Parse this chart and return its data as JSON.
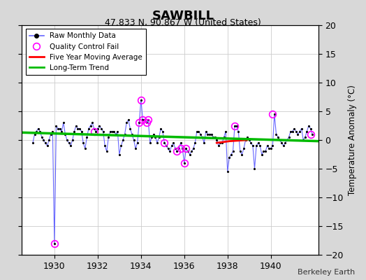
{
  "title": "SAWBILL",
  "subtitle": "47.833 N, 90.867 W (United States)",
  "credit": "Berkeley Earth",
  "ylabel": "Temperature Anomaly (°C)",
  "xlim": [
    1928.5,
    1942.2
  ],
  "ylim": [
    -20,
    20
  ],
  "yticks": [
    -20,
    -15,
    -10,
    -5,
    0,
    5,
    10,
    15,
    20
  ],
  "xticks": [
    1930,
    1932,
    1934,
    1936,
    1938,
    1940
  ],
  "bg_color": "#d8d8d8",
  "plot_bg": "#ffffff",
  "raw_x": [
    1929.0,
    1929.083,
    1929.167,
    1929.25,
    1929.333,
    1929.417,
    1929.5,
    1929.583,
    1929.667,
    1929.75,
    1929.833,
    1929.917,
    1930.0,
    1930.083,
    1930.167,
    1930.25,
    1930.333,
    1930.417,
    1930.5,
    1930.583,
    1930.667,
    1930.75,
    1930.833,
    1930.917,
    1931.0,
    1931.083,
    1931.167,
    1931.25,
    1931.333,
    1931.417,
    1931.5,
    1931.583,
    1931.667,
    1931.75,
    1931.833,
    1931.917,
    1932.0,
    1932.083,
    1932.167,
    1932.25,
    1932.333,
    1932.417,
    1932.5,
    1932.583,
    1932.667,
    1932.75,
    1932.833,
    1932.917,
    1933.0,
    1933.083,
    1933.167,
    1933.25,
    1933.333,
    1933.417,
    1933.5,
    1933.583,
    1933.667,
    1933.75,
    1933.833,
    1933.917,
    1934.0,
    1934.083,
    1934.167,
    1934.25,
    1934.333,
    1934.417,
    1934.5,
    1934.583,
    1934.667,
    1934.75,
    1934.833,
    1934.917,
    1935.0,
    1935.083,
    1935.167,
    1935.25,
    1935.333,
    1935.417,
    1935.5,
    1935.583,
    1935.667,
    1935.75,
    1935.833,
    1935.917,
    1936.0,
    1936.083,
    1936.167,
    1936.25,
    1936.333,
    1936.417,
    1936.5,
    1936.583,
    1936.667,
    1936.75,
    1936.833,
    1936.917,
    1937.0,
    1937.083,
    1937.167,
    1937.25,
    1937.333,
    1937.417,
    1937.5,
    1937.583,
    1937.667,
    1937.75,
    1937.833,
    1937.917,
    1938.0,
    1938.083,
    1938.167,
    1938.25,
    1938.333,
    1938.417,
    1938.5,
    1938.583,
    1938.667,
    1938.75,
    1938.833,
    1938.917,
    1939.0,
    1939.083,
    1939.167,
    1939.25,
    1939.333,
    1939.417,
    1939.5,
    1939.583,
    1939.667,
    1939.75,
    1939.833,
    1939.917,
    1940.0,
    1940.083,
    1940.167,
    1940.25,
    1940.333,
    1940.417,
    1940.5,
    1940.583,
    1940.667,
    1940.75,
    1940.833,
    1940.917,
    1941.0,
    1941.083,
    1941.167,
    1941.25,
    1941.333,
    1941.417,
    1941.5,
    1941.583,
    1941.667,
    1941.75,
    1941.833,
    1941.917
  ],
  "raw_y": [
    -0.5,
    1.0,
    1.5,
    2.0,
    1.5,
    0.5,
    0.0,
    -0.5,
    -1.0,
    0.0,
    1.0,
    1.5,
    -18.0,
    2.5,
    2.0,
    2.0,
    1.5,
    3.0,
    1.0,
    0.0,
    -0.5,
    -1.0,
    0.0,
    1.5,
    2.5,
    2.0,
    2.0,
    1.5,
    -0.5,
    -1.5,
    0.5,
    2.0,
    2.5,
    3.0,
    2.0,
    1.5,
    2.0,
    2.5,
    2.0,
    1.5,
    -1.0,
    -2.0,
    0.5,
    1.5,
    1.5,
    1.5,
    1.0,
    1.5,
    -2.5,
    -1.0,
    0.0,
    1.0,
    3.0,
    3.5,
    2.0,
    1.0,
    0.0,
    -1.5,
    -0.5,
    3.0,
    7.0,
    3.5,
    3.5,
    3.0,
    3.5,
    -0.5,
    0.5,
    1.0,
    0.5,
    -0.5,
    0.5,
    2.0,
    1.5,
    -0.5,
    -1.0,
    -1.5,
    -2.0,
    -1.0,
    -0.5,
    -1.5,
    -2.0,
    -1.5,
    -0.5,
    -1.5,
    -4.0,
    -1.5,
    -2.0,
    -2.5,
    -2.0,
    -1.5,
    -0.5,
    1.5,
    1.5,
    1.0,
    0.5,
    -0.5,
    1.5,
    1.0,
    1.0,
    1.0,
    0.5,
    0.5,
    0.0,
    -1.0,
    -0.5,
    -0.5,
    0.5,
    1.5,
    -5.5,
    -3.0,
    -2.5,
    -2.0,
    2.5,
    2.5,
    1.5,
    -2.0,
    -2.5,
    -1.5,
    0.0,
    0.5,
    0.0,
    -0.5,
    -1.0,
    -5.0,
    -1.0,
    -0.5,
    -1.0,
    -2.5,
    -2.0,
    -2.0,
    -1.0,
    -1.5,
    -1.5,
    -1.0,
    4.5,
    1.0,
    0.5,
    0.0,
    -0.5,
    -1.0,
    -0.5,
    0.0,
    0.5,
    1.5,
    1.5,
    2.0,
    1.5,
    1.0,
    1.5,
    2.0,
    0.0,
    0.5,
    1.5,
    2.5,
    2.0,
    1.0
  ],
  "qc_fail_x": [
    1930.0,
    1931.833,
    1933.917,
    1934.0,
    1934.083,
    1934.25,
    1934.333,
    1935.083,
    1935.667,
    1935.833,
    1936.0,
    1936.083,
    1938.333,
    1940.083,
    1941.833
  ],
  "qc_fail_y": [
    -18.0,
    1.5,
    3.0,
    7.0,
    3.5,
    3.0,
    3.5,
    -0.5,
    -2.0,
    -1.5,
    -4.0,
    -1.5,
    2.5,
    4.5,
    1.0
  ],
  "five_yr_x": [
    1937.5,
    1937.7,
    1937.9,
    1938.1,
    1938.3,
    1938.5,
    1938.7,
    1938.9
  ],
  "five_yr_y": [
    -0.5,
    -0.4,
    -0.3,
    -0.2,
    -0.15,
    -0.1,
    -0.05,
    0.0
  ],
  "trend_x": [
    1928.5,
    1942.2
  ],
  "trend_y": [
    1.3,
    -0.2
  ]
}
